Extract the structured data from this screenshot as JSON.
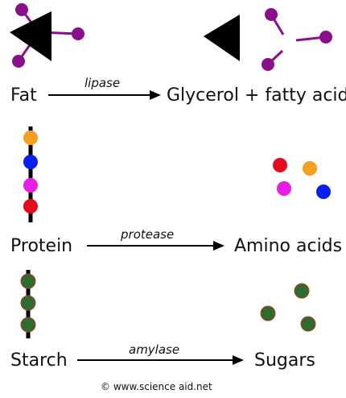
{
  "colors": {
    "fat": "#8a0f8a",
    "amino_orange": "#f5a020",
    "amino_blue": "#0a1ef0",
    "amino_magenta": "#e61ee6",
    "amino_red": "#e60a1e",
    "sugar_green": "#2e6b2e",
    "sugar_outline": "#c0392b",
    "ink": "#000000"
  },
  "rows": {
    "fat": {
      "reactant": "Fat",
      "enzyme": "lipase",
      "product": "Glycerol + fatty acid"
    },
    "protein": {
      "reactant": "Protein",
      "enzyme": "protease",
      "product": "Amino acids"
    },
    "starch": {
      "reactant": "Starch",
      "enzyme": "amylase",
      "product": "Sugars"
    }
  },
  "credit": "© www.science aid.net"
}
